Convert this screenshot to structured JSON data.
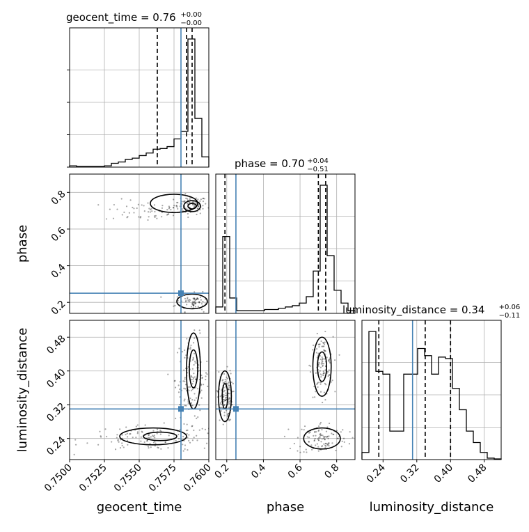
{
  "chart_data": {
    "type": "corner",
    "parameters": [
      "geocent_time",
      "phase",
      "luminosity_distance"
    ],
    "axis_labels": [
      "geocent_time",
      "phase",
      "luminosity_distance"
    ],
    "ranges": {
      "geocent_time": [
        0.75,
        0.76
      ],
      "phase": [
        0.14,
        0.9
      ],
      "luminosity_distance": [
        0.19,
        0.52
      ]
    },
    "ticks": {
      "geocent_time": [
        0.75,
        0.7525,
        0.755,
        0.7575,
        0.76
      ],
      "phase": [
        0.2,
        0.4,
        0.6,
        0.8
      ],
      "luminosity_distance": [
        0.24,
        0.32,
        0.4,
        0.48
      ]
    },
    "tick_labels": {
      "geocent_time": [
        "0.7500",
        "0.7525",
        "0.7550",
        "0.7575",
        "0.7600"
      ],
      "phase": [
        "0.2",
        "0.4",
        "0.6",
        "0.8"
      ],
      "luminosity_distance": [
        "0.24",
        "0.32",
        "0.40",
        "0.48"
      ]
    },
    "titles": [
      {
        "param": "geocent_time",
        "main": "geocent_time = 0.76",
        "upper": "+0.00",
        "lower": "−0.00"
      },
      {
        "param": "phase",
        "main": "phase = 0.70",
        "upper": "+0.04",
        "lower": "−0.51"
      },
      {
        "param": "luminosity_distance",
        "main": "luminosity_distance = 0.34",
        "upper": "+0.06",
        "lower": "−0.11"
      }
    ],
    "truths": {
      "geocent_time": 0.758,
      "phase": 0.25,
      "luminosity_distance": 0.31
    },
    "quantiles": {
      "geocent_time": [
        0.7563,
        0.7584,
        0.7588
      ],
      "phase": [
        0.19,
        0.7,
        0.74
      ],
      "luminosity_distance": [
        0.23,
        0.34,
        0.4
      ]
    },
    "histograms": {
      "geocent_time": {
        "edges": [
          0.75,
          0.7505,
          0.751,
          0.7515,
          0.752,
          0.7525,
          0.753,
          0.7535,
          0.754,
          0.7545,
          0.755,
          0.7555,
          0.756,
          0.7565,
          0.757,
          0.7575,
          0.758,
          0.7585,
          0.759,
          0.7595,
          0.76
        ],
        "counts": [
          0.01,
          0.005,
          0.005,
          0.005,
          0.005,
          0.01,
          0.03,
          0.04,
          0.06,
          0.07,
          0.09,
          0.11,
          0.14,
          0.145,
          0.16,
          0.22,
          0.28,
          1.0,
          0.38,
          0.08
        ]
      },
      "phase": {
        "edges": [
          0.14,
          0.178,
          0.216,
          0.254,
          0.292,
          0.33,
          0.368,
          0.406,
          0.444,
          0.482,
          0.52,
          0.558,
          0.596,
          0.634,
          0.672,
          0.71,
          0.748,
          0.786,
          0.824,
          0.862,
          0.9
        ],
        "counts": [
          0.05,
          0.6,
          0.12,
          0.02,
          0.02,
          0.02,
          0.02,
          0.03,
          0.03,
          0.04,
          0.05,
          0.06,
          0.08,
          0.13,
          0.33,
          1.0,
          0.45,
          0.18,
          0.08,
          0.02
        ]
      },
      "luminosity_distance": {
        "edges": [
          0.19,
          0.2065,
          0.223,
          0.2395,
          0.256,
          0.2725,
          0.289,
          0.3055,
          0.322,
          0.3385,
          0.355,
          0.3715,
          0.388,
          0.4045,
          0.421,
          0.4375,
          0.454,
          0.4705,
          0.487,
          0.5035,
          0.52
        ],
        "counts": [
          0.05,
          0.9,
          0.62,
          0.6,
          0.2,
          0.2,
          0.6,
          0.6,
          0.78,
          0.73,
          0.6,
          0.72,
          0.71,
          0.5,
          0.35,
          0.2,
          0.12,
          0.05,
          0.01,
          0.005
        ]
      }
    },
    "scatter_blobs": [
      {
        "pair": [
          "geocent_time",
          "phase"
        ],
        "x": 0.7587,
        "y": 0.73,
        "sx": 0.0006,
        "sy": 0.025,
        "n": 90
      },
      {
        "pair": [
          "geocent_time",
          "phase"
        ],
        "x": 0.7555,
        "y": 0.7,
        "sx": 0.0015,
        "sy": 0.03,
        "n": 60
      },
      {
        "pair": [
          "geocent_time",
          "phase"
        ],
        "x": 0.759,
        "y": 0.2,
        "sx": 0.0007,
        "sy": 0.025,
        "n": 80
      },
      {
        "pair": [
          "geocent_time",
          "luminosity_distance"
        ],
        "x": 0.7588,
        "y": 0.38,
        "sx": 0.0006,
        "sy": 0.05,
        "n": 140
      },
      {
        "pair": [
          "geocent_time",
          "luminosity_distance"
        ],
        "x": 0.756,
        "y": 0.24,
        "sx": 0.0025,
        "sy": 0.015,
        "n": 120
      },
      {
        "pair": [
          "phase",
          "luminosity_distance"
        ],
        "x": 0.72,
        "y": 0.41,
        "sx": 0.03,
        "sy": 0.035,
        "n": 120
      },
      {
        "pair": [
          "phase",
          "luminosity_distance"
        ],
        "x": 0.72,
        "y": 0.24,
        "sx": 0.07,
        "sy": 0.02,
        "n": 110
      },
      {
        "pair": [
          "phase",
          "luminosity_distance"
        ],
        "x": 0.19,
        "y": 0.34,
        "sx": 0.02,
        "sy": 0.03,
        "n": 120
      }
    ],
    "contours": [
      {
        "pair": [
          "geocent_time",
          "phase"
        ],
        "cx": 0.7588,
        "cy": 0.725,
        "rx": 0.0006,
        "ry": 0.03
      },
      {
        "pair": [
          "geocent_time",
          "phase"
        ],
        "cx": 0.7588,
        "cy": 0.725,
        "rx": 0.0003,
        "ry": 0.015
      },
      {
        "pair": [
          "geocent_time",
          "phase"
        ],
        "cx": 0.7575,
        "cy": 0.74,
        "rx": 0.0017,
        "ry": 0.05
      },
      {
        "pair": [
          "geocent_time",
          "phase"
        ],
        "cx": 0.7588,
        "cy": 0.205,
        "rx": 0.0011,
        "ry": 0.04
      },
      {
        "pair": [
          "geocent_time",
          "luminosity_distance"
        ],
        "cx": 0.7589,
        "cy": 0.4,
        "rx": 0.0005,
        "ry": 0.09
      },
      {
        "pair": [
          "geocent_time",
          "luminosity_distance"
        ],
        "cx": 0.7589,
        "cy": 0.405,
        "rx": 0.0003,
        "ry": 0.045
      },
      {
        "pair": [
          "geocent_time",
          "luminosity_distance"
        ],
        "cx": 0.756,
        "cy": 0.245,
        "rx": 0.0024,
        "ry": 0.02
      },
      {
        "pair": [
          "geocent_time",
          "luminosity_distance"
        ],
        "cx": 0.7565,
        "cy": 0.245,
        "rx": 0.0012,
        "ry": 0.01
      },
      {
        "pair": [
          "phase",
          "luminosity_distance"
        ],
        "cx": 0.72,
        "cy": 0.41,
        "rx": 0.05,
        "ry": 0.07
      },
      {
        "pair": [
          "phase",
          "luminosity_distance"
        ],
        "cx": 0.72,
        "cy": 0.41,
        "rx": 0.025,
        "ry": 0.035
      },
      {
        "pair": [
          "phase",
          "luminosity_distance"
        ],
        "cx": 0.72,
        "cy": 0.24,
        "rx": 0.1,
        "ry": 0.025
      },
      {
        "pair": [
          "phase",
          "luminosity_distance"
        ],
        "cx": 0.19,
        "cy": 0.34,
        "rx": 0.035,
        "ry": 0.06
      },
      {
        "pair": [
          "phase",
          "luminosity_distance"
        ],
        "cx": 0.19,
        "cy": 0.34,
        "rx": 0.015,
        "ry": 0.03
      }
    ],
    "colors": {
      "truth": "#4682b4",
      "hist": "#000000",
      "grid": "#b0b0b0",
      "scatter": "#000000"
    },
    "grid": true
  }
}
